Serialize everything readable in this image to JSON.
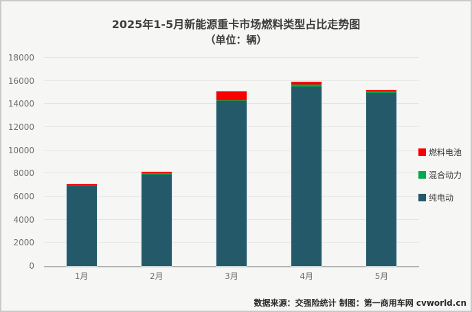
{
  "title": {
    "line1": "2025年1-5月新能源重卡市场燃料类型占比走势图",
    "line2": "（单位：辆）"
  },
  "footer": {
    "text": "数据来源：交强险统计  制图：第一商用车网 cvworld.cn"
  },
  "colors": {
    "background": "#f6f6f4",
    "frame_border": "#c9c9c9",
    "gridline": "#e4e4e1",
    "axis_line": "#b3b3b3",
    "tick_text": "#6f6f6f",
    "title_text": "#3d3d3d",
    "pure_electric": "#24596a",
    "hybrid": "#00a84e",
    "fuel_cell": "#f90000"
  },
  "chart_data": {
    "type": "bar",
    "stacked": true,
    "title": "2025年1-5月新能源重卡市场燃料类型占比走势图",
    "subtitle": "（单位：辆）",
    "categories": [
      "1月",
      "2月",
      "3月",
      "4月",
      "5月"
    ],
    "series": [
      {
        "name": "纯电动",
        "color": "#24596a",
        "values": [
          6900,
          7920,
          14250,
          15500,
          14990
        ]
      },
      {
        "name": "混合动力",
        "color": "#00a84e",
        "values": [
          60,
          100,
          90,
          200,
          90
        ]
      },
      {
        "name": "燃料电池",
        "color": "#f90000",
        "values": [
          90,
          130,
          760,
          200,
          120
        ]
      }
    ],
    "ylim": [
      0,
      18000
    ],
    "yticks": [
      0,
      2000,
      4000,
      6000,
      8000,
      10000,
      12000,
      14000,
      16000,
      18000
    ],
    "grid": true,
    "legend_position": "right",
    "legend_order": [
      "燃料电池",
      "混合动力",
      "纯电动"
    ]
  }
}
